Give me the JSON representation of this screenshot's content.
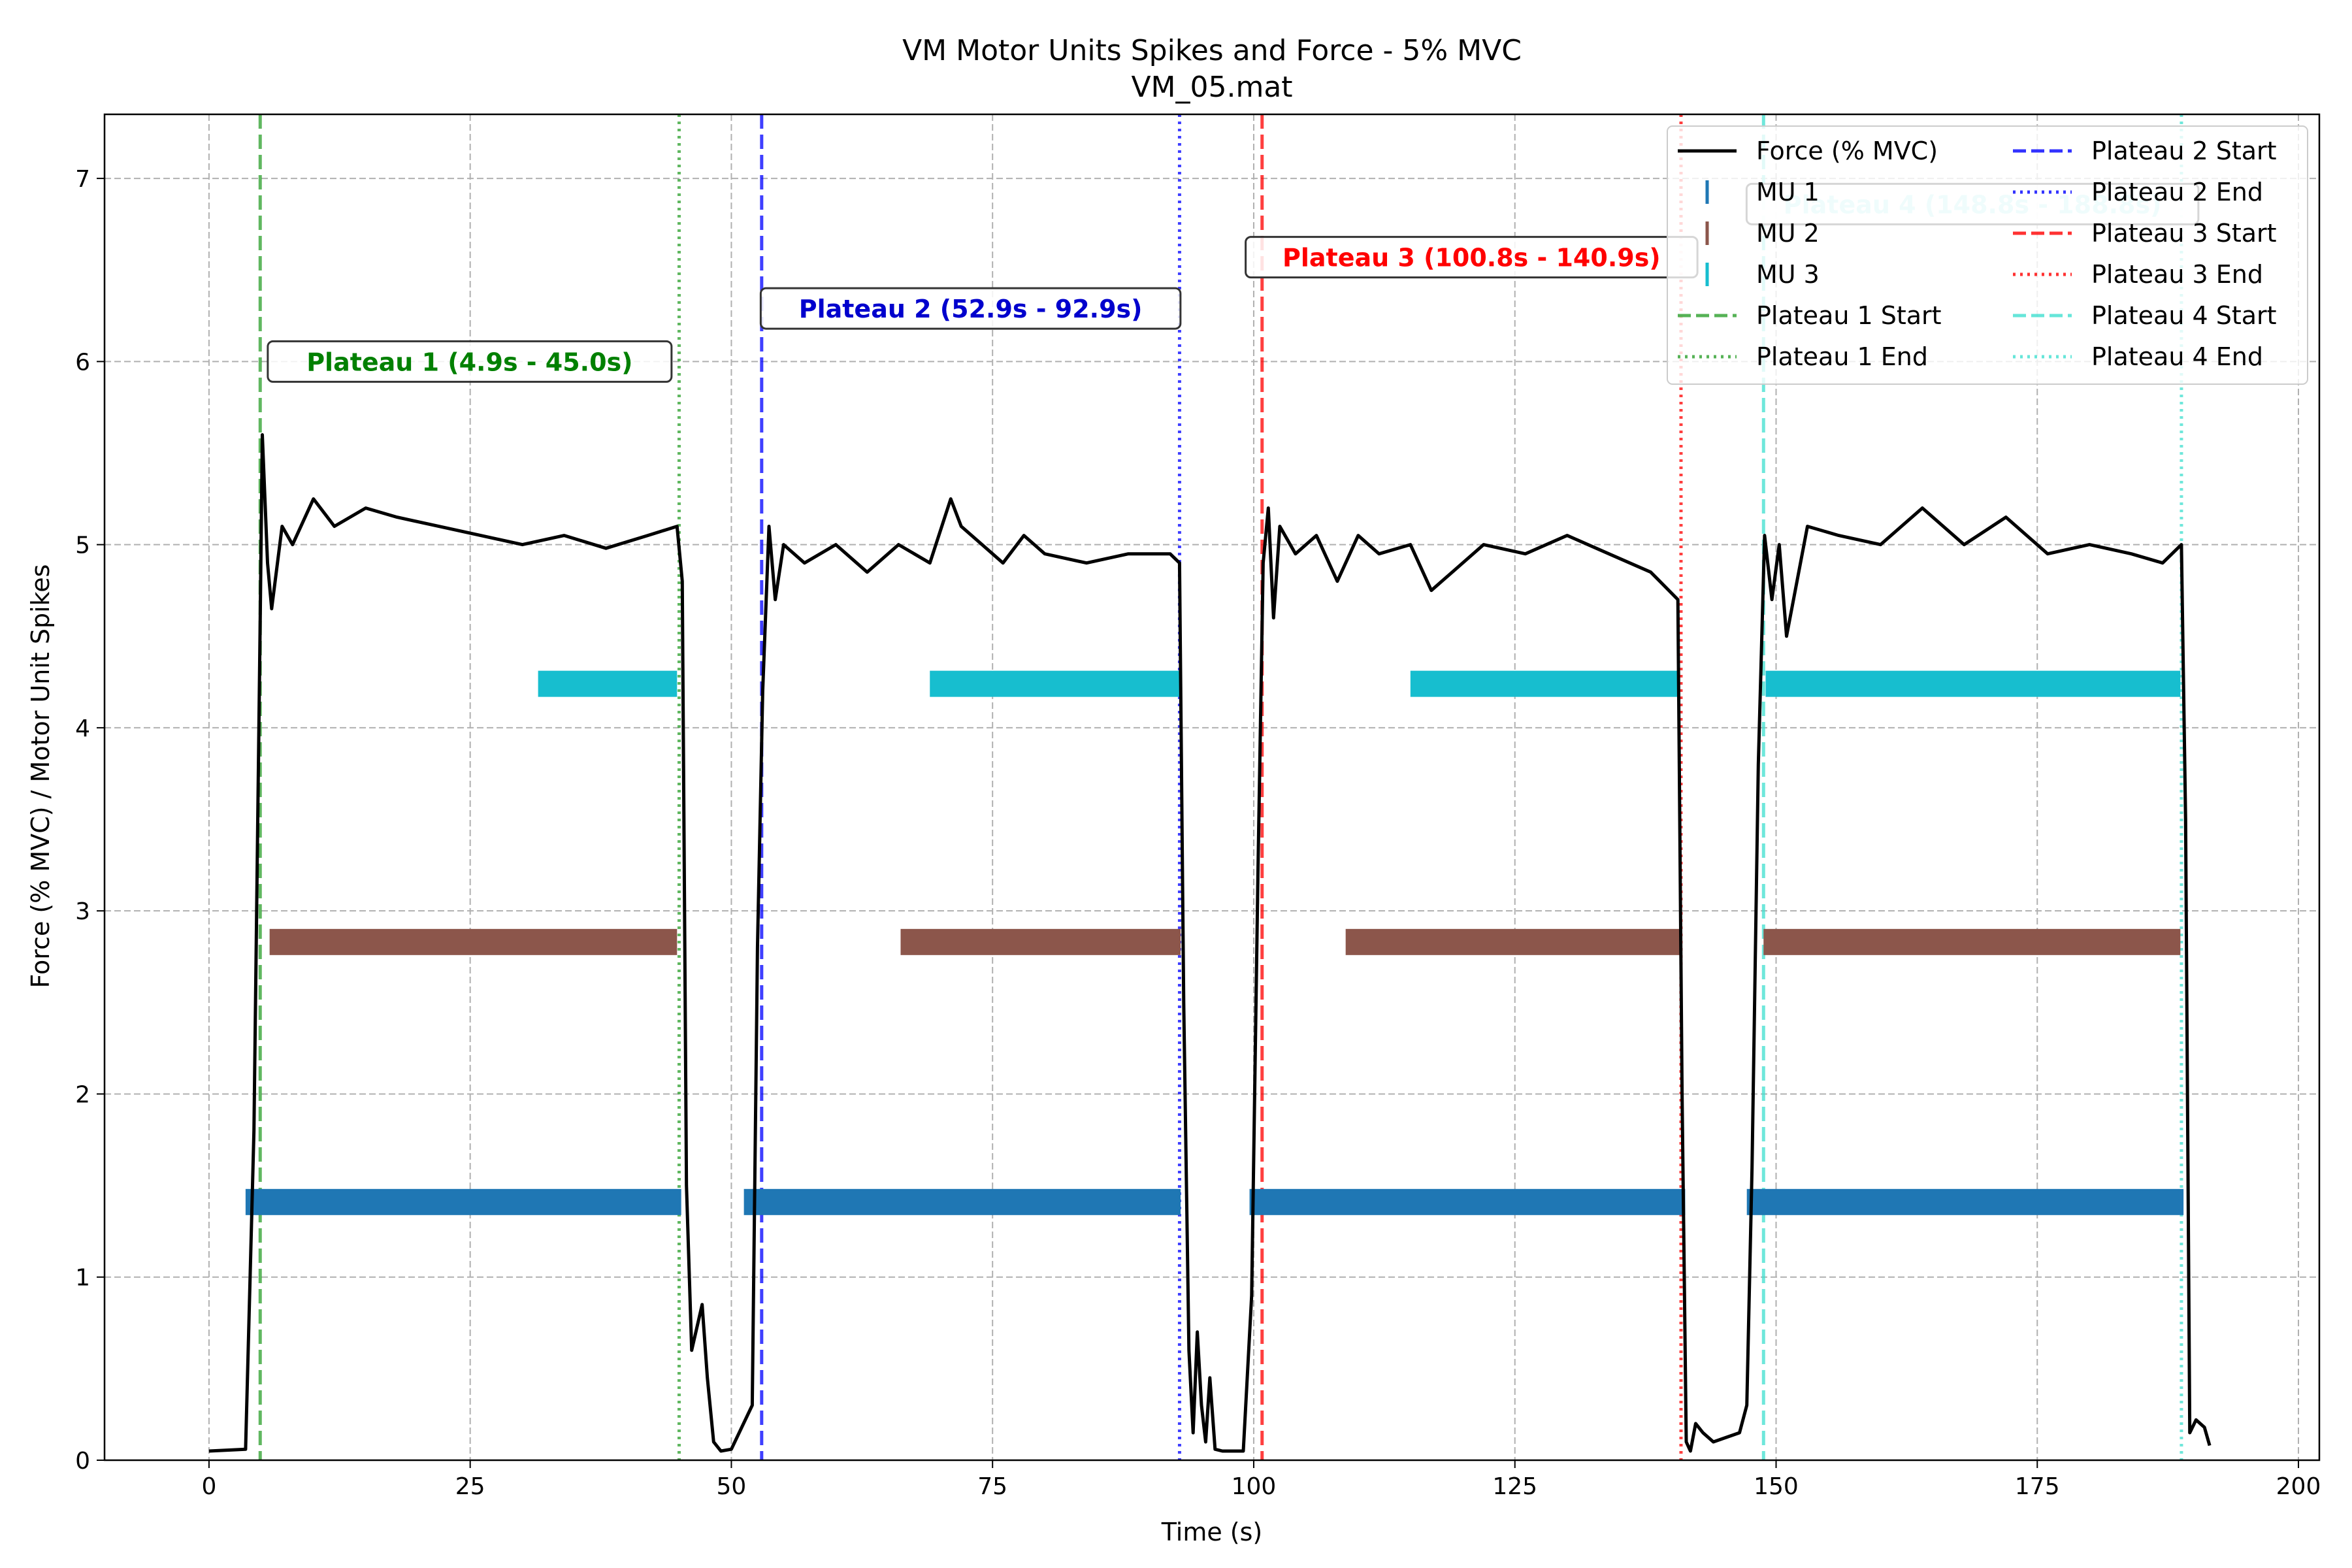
{
  "chart_data": {
    "type": "line",
    "title": "VM Motor Units Spikes and Force - 5% MVC",
    "subtitle": "VM_05.mat",
    "xlabel": "Time (s)",
    "ylabel": "Force (% MVC) / Motor Unit Spikes",
    "xlim": [
      -10,
      202
    ],
    "ylim": [
      0,
      7.35
    ],
    "xticks": [
      0,
      25,
      50,
      75,
      100,
      125,
      150,
      175,
      200
    ],
    "yticks": [
      0,
      1,
      2,
      3,
      4,
      5,
      6,
      7
    ],
    "grid": true,
    "legend_position": "top-right",
    "legend_columns": 2,
    "force": {
      "name": "Force (% MVC)",
      "color": "#000000",
      "x": [
        0,
        3.5,
        4.3,
        4.9,
        5.1,
        5.6,
        6.0,
        7,
        8,
        10,
        12,
        15,
        18,
        22,
        26,
        30,
        34,
        38,
        42,
        44.8,
        45.3,
        45.7,
        46.2,
        46.8,
        47.2,
        47.7,
        48.3,
        49.0,
        50,
        52,
        52.5,
        53.0,
        53.6,
        54.2,
        55,
        57,
        60,
        63,
        66,
        69,
        71,
        72,
        74,
        76,
        78,
        80,
        84,
        88,
        92,
        92.9,
        93.3,
        93.8,
        94.2,
        94.6,
        95.0,
        95.4,
        95.8,
        96.3,
        97,
        99,
        99.8,
        100.4,
        100.9,
        101.4,
        101.9,
        102.5,
        104,
        106,
        108,
        110,
        112,
        115,
        117,
        119,
        122,
        126,
        130,
        134,
        138,
        140.6,
        141.0,
        141.4,
        141.8,
        142.3,
        143,
        144,
        145,
        146.5,
        147.2,
        147.7,
        148.3,
        148.9,
        149.6,
        150.3,
        151,
        153,
        156,
        160,
        164,
        168,
        172,
        176,
        180,
        184,
        187,
        188.8,
        189.2,
        189.6,
        190.2,
        191,
        191.5
      ],
      "y": [
        0.05,
        0.06,
        1.8,
        4.6,
        5.6,
        4.9,
        4.65,
        5.1,
        5.0,
        5.25,
        5.1,
        5.2,
        5.15,
        5.1,
        5.05,
        5.0,
        5.05,
        4.98,
        5.05,
        5.1,
        4.8,
        1.5,
        0.6,
        0.75,
        0.85,
        0.45,
        0.1,
        0.05,
        0.06,
        0.3,
        2.8,
        4.2,
        5.1,
        4.7,
        5.0,
        4.9,
        5.0,
        4.85,
        5.0,
        4.9,
        5.25,
        5.1,
        5.0,
        4.9,
        5.05,
        4.95,
        4.9,
        4.95,
        4.95,
        4.9,
        2.5,
        0.6,
        0.15,
        0.7,
        0.3,
        0.1,
        0.45,
        0.06,
        0.05,
        0.05,
        0.9,
        3.2,
        4.9,
        5.2,
        4.6,
        5.1,
        4.95,
        5.05,
        4.8,
        5.05,
        4.95,
        5.0,
        4.75,
        4.85,
        5.0,
        4.95,
        5.05,
        4.95,
        4.85,
        4.7,
        2.0,
        0.1,
        0.05,
        0.2,
        0.15,
        0.1,
        0.12,
        0.15,
        0.3,
        1.6,
        3.8,
        5.05,
        4.7,
        5.0,
        4.5,
        5.1,
        5.05,
        5.0,
        5.2,
        5.0,
        5.15,
        4.95,
        5.0,
        4.95,
        4.9,
        5.0,
        3.5,
        0.15,
        0.22,
        0.18,
        0.08
      ]
    },
    "series": [
      {
        "name": "MU 1",
        "color": "#1f77b4",
        "y": 1.41,
        "intervals": [
          [
            3.5,
            45.2
          ],
          [
            51.2,
            93.0
          ],
          [
            99.6,
            141.3
          ],
          [
            147.2,
            189.0
          ]
        ]
      },
      {
        "name": "MU 2",
        "color": "#8c564b",
        "y": 2.83,
        "intervals": [
          [
            5.8,
            44.8
          ],
          [
            66.2,
            93.0
          ],
          [
            108.8,
            140.8
          ],
          [
            148.8,
            188.7
          ]
        ]
      },
      {
        "name": "MU 3",
        "color": "#17becf",
        "y": 4.24,
        "intervals": [
          [
            31.5,
            44.8
          ],
          [
            69.0,
            93.0
          ],
          [
            115.0,
            140.8
          ],
          [
            149.0,
            188.7
          ]
        ]
      }
    ],
    "plateaus": [
      {
        "start": 4.9,
        "end": 45.0,
        "color": "#2ca02c",
        "label": "Plateau 1 (4.9s - 45.0s)",
        "label_y": 6.0,
        "start_name": "Plateau 1 Start",
        "end_name": "Plateau 1 End"
      },
      {
        "start": 52.9,
        "end": 92.9,
        "color": "#0000ff",
        "label": "Plateau 2 (52.9s - 92.9s)",
        "label_y": 6.29,
        "start_name": "Plateau 2 Start",
        "end_name": "Plateau 2 End"
      },
      {
        "start": 100.8,
        "end": 140.9,
        "color": "#ff0000",
        "label": "Plateau 3 (100.8s - 140.9s)",
        "label_y": 6.57,
        "start_name": "Plateau 3 Start",
        "end_name": "Plateau 3 End"
      },
      {
        "start": 148.8,
        "end": 188.8,
        "color": "#40e0d0",
        "label": "Plateau 4 (148.8s - 188.8s)",
        "label_y": 6.86,
        "start_name": "Plateau 4 Start",
        "end_name": "Plateau 4 End"
      }
    ],
    "plateau_label_colors": [
      "#008000",
      "#0000cd",
      "#ff0000",
      "#afeeee"
    ]
  }
}
